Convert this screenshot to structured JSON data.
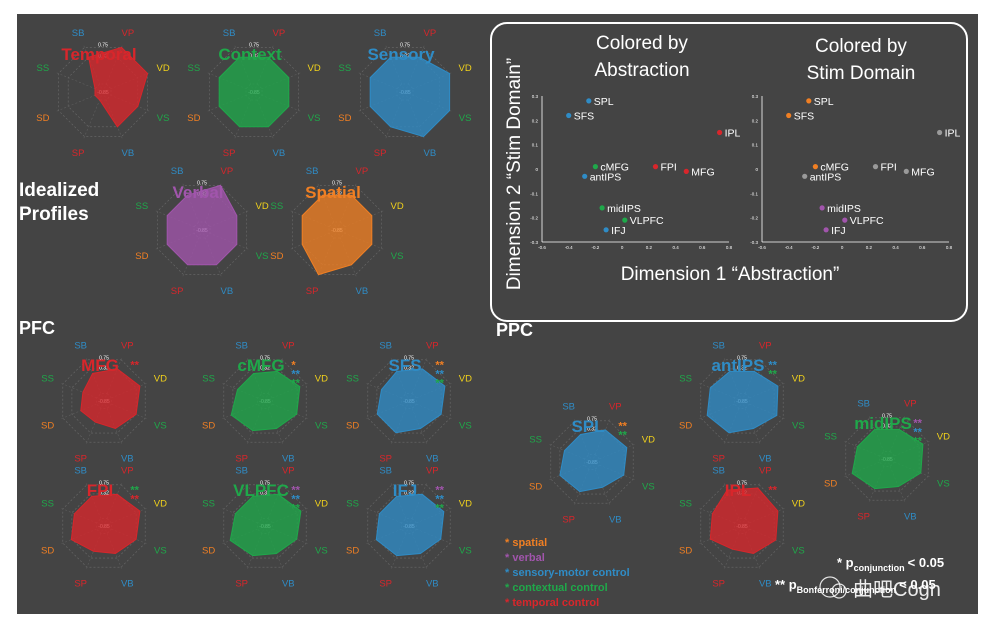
{
  "axis_labels": {
    "VP": "VP",
    "VD": "VD",
    "VS": "VS",
    "VB": "VB",
    "SP": "SP",
    "SD": "SD",
    "SS": "SS",
    "SB": "SB"
  },
  "tick_labels": {
    "outer": "0.75",
    "mid": "0.32",
    "inner": "-0.85"
  },
  "colors": {
    "spatial": "#f07f23",
    "verbal": "#a155ac",
    "sensory": "#2f8cc6",
    "contextual": "#1fa84a",
    "temporal": "#d8262b",
    "gray": "#9a9a9a"
  },
  "idealized": {
    "title_line1": "Idealized",
    "title_line2": "Profiles",
    "profiles": [
      {
        "name": "Temporal",
        "color": "temporal",
        "values": [
          0.75,
          0.75,
          0.32,
          0.32,
          -0.85,
          -0.85,
          -0.85,
          0.32
        ]
      },
      {
        "name": "Context",
        "color": "contextual",
        "values": [
          0.32,
          0.32,
          0.32,
          0.32,
          0.32,
          0.32,
          0.32,
          0.32
        ]
      },
      {
        "name": "Sensory",
        "color": "sensory",
        "values": [
          0.32,
          0.75,
          0.75,
          0.75,
          0.32,
          0.32,
          0.32,
          0.32
        ]
      },
      {
        "name": "Verbal",
        "color": "verbal",
        "values": [
          0.75,
          0.32,
          0.32,
          0.32,
          0.32,
          0.32,
          0.32,
          0.32
        ]
      },
      {
        "name": "Spatial",
        "color": "spatial",
        "values": [
          0.32,
          0.32,
          0.32,
          0.32,
          0.75,
          0.32,
          0.32,
          0.32
        ]
      }
    ]
  },
  "pfc": {
    "title": "PFC",
    "regions": [
      {
        "name": "MFG",
        "color": "temporal",
        "stars": [
          {
            "text": "**",
            "color": "temporal"
          }
        ],
        "values": [
          0.32,
          0.5,
          0.32,
          0.1,
          -0.2,
          -0.1,
          -0.2,
          0.1
        ]
      },
      {
        "name": "cMFG",
        "color": "contextual",
        "stars": [
          {
            "text": "*",
            "color": "spatial"
          },
          {
            "text": "**",
            "color": "sensory"
          },
          {
            "text": "**",
            "color": "contextual"
          }
        ],
        "values": [
          0.2,
          0.45,
          0.3,
          0.1,
          0.2,
          0.4,
          0.1,
          0.1
        ]
      },
      {
        "name": "SFS",
        "color": "sensory",
        "stars": [
          {
            "text": "**",
            "color": "spatial"
          },
          {
            "text": "**",
            "color": "sensory"
          },
          {
            "text": "**",
            "color": "contextual"
          }
        ],
        "values": [
          0.32,
          0.5,
          0.32,
          0.1,
          0.3,
          0.3,
          0.1,
          0.2
        ]
      },
      {
        "name": "FPI",
        "color": "temporal",
        "stars": [
          {
            "text": "**",
            "color": "contextual"
          },
          {
            "text": "**",
            "color": "temporal"
          }
        ],
        "values": [
          0.3,
          0.5,
          0.32,
          0.1,
          0.0,
          0.35,
          0.2,
          0.2
        ]
      },
      {
        "name": "VLPFC",
        "color": "contextual",
        "stars": [
          {
            "text": "**",
            "color": "verbal"
          },
          {
            "text": "**",
            "color": "sensory"
          },
          {
            "text": "**",
            "color": "contextual"
          }
        ],
        "values": [
          0.3,
          0.5,
          0.3,
          0.1,
          0.2,
          0.45,
          0.2,
          0.2
        ]
      },
      {
        "name": "IFJ",
        "color": "sensory",
        "stars": [
          {
            "text": "**",
            "color": "verbal"
          },
          {
            "text": "**",
            "color": "sensory"
          },
          {
            "text": "**",
            "color": "contextual"
          }
        ],
        "values": [
          0.3,
          0.45,
          0.3,
          0.1,
          0.2,
          0.35,
          0.2,
          0.2
        ]
      }
    ]
  },
  "ppc": {
    "title": "PPC",
    "regions": [
      {
        "name": "SPL",
        "color": "sensory",
        "stars": [
          {
            "text": "**",
            "color": "spatial"
          },
          {
            "text": "**",
            "color": "contextual"
          }
        ],
        "values": [
          0.32,
          0.45,
          0.3,
          0.0,
          0.2,
          0.32,
          0.1,
          0.1
        ]
      },
      {
        "name": "antIPS",
        "color": "sensory",
        "stars": [
          {
            "text": "**",
            "color": "sensory"
          },
          {
            "text": "**",
            "color": "contextual"
          }
        ],
        "values": [
          0.2,
          0.5,
          0.45,
          0.1,
          0.3,
          0.45,
          0.3,
          0.2
        ]
      },
      {
        "name": "midIPS",
        "color": "contextual",
        "stars": [
          {
            "text": "**",
            "color": "verbal"
          },
          {
            "text": "**",
            "color": "sensory"
          },
          {
            "text": "**",
            "color": "contextual"
          }
        ],
        "values": [
          0.2,
          0.5,
          0.4,
          0.1,
          0.2,
          0.45,
          0.2,
          0.2
        ]
      },
      {
        "name": "IPL",
        "color": "temporal",
        "stars": [
          {
            "text": "**",
            "color": "temporal"
          }
        ],
        "values": [
          0.6,
          0.5,
          0.4,
          0.1,
          -0.1,
          0.3,
          0.2,
          0.5
        ]
      }
    ]
  },
  "legend": {
    "items": [
      {
        "text": "* spatial",
        "color": "spatial"
      },
      {
        "text": "* verbal",
        "color": "verbal"
      },
      {
        "text": "* sensory-motor control",
        "color": "sensory"
      },
      {
        "text": "* contextual control",
        "color": "contextual"
      },
      {
        "text": "* temporal control",
        "color": "temporal"
      }
    ],
    "sig1_prefix": "* p",
    "sig1_sub": "conjunction",
    "sig1_suffix": "< 0.05",
    "sig2_prefix": "** p",
    "sig2_sub": "Bonferroni/conjunction",
    "sig2_suffix": "< 0.05",
    "watermark": "曲吧Cogn"
  },
  "chart_data": [
    {
      "type": "scatter",
      "title_line1": "Colored by",
      "title_line2": "Abstraction",
      "xlabel": "Dimension 1 “Abstraction”",
      "ylabel": "Dimension 2 “Stim Domain”",
      "xlim": [
        -0.6,
        0.8
      ],
      "ylim": [
        -0.3,
        0.3
      ],
      "xticks": [
        "-0.6",
        "-0.4",
        "-0.2",
        "0",
        "0.2",
        "0.4",
        "0.6",
        "0.8"
      ],
      "yticks": [
        "0.3",
        "0.2",
        "0.1",
        "0",
        "-0.1",
        "-0.2",
        "-0.3"
      ],
      "points": [
        {
          "label": "SPL",
          "x": -0.25,
          "y": 0.28,
          "color": "sensory"
        },
        {
          "label": "SFS",
          "x": -0.4,
          "y": 0.22,
          "color": "sensory"
        },
        {
          "label": "IPL",
          "x": 0.73,
          "y": 0.15,
          "color": "temporal"
        },
        {
          "label": "cMFG",
          "x": -0.2,
          "y": 0.01,
          "color": "contextual"
        },
        {
          "label": "FPI",
          "x": 0.25,
          "y": 0.01,
          "color": "temporal"
        },
        {
          "label": "MFG",
          "x": 0.48,
          "y": -0.01,
          "color": "temporal"
        },
        {
          "label": "antIPS",
          "x": -0.28,
          "y": -0.03,
          "color": "sensory"
        },
        {
          "label": "midIPS",
          "x": -0.15,
          "y": -0.16,
          "color": "contextual"
        },
        {
          "label": "VLPFC",
          "x": 0.02,
          "y": -0.21,
          "color": "contextual"
        },
        {
          "label": "IFJ",
          "x": -0.12,
          "y": -0.25,
          "color": "sensory"
        }
      ]
    },
    {
      "type": "scatter",
      "title_line1": "Colored by",
      "title_line2": "Stim Domain",
      "xlim": [
        -0.6,
        0.8
      ],
      "ylim": [
        -0.3,
        0.3
      ],
      "xticks": [
        "-0.6",
        "-0.4",
        "-0.2",
        "0",
        "0.2",
        "0.4",
        "0.6",
        "0.8"
      ],
      "yticks": [
        "0.3",
        "0.2",
        "0.1",
        "0",
        "-0.1",
        "-0.2",
        "-0.3"
      ],
      "points": [
        {
          "label": "SPL",
          "x": -0.25,
          "y": 0.28,
          "color": "spatial"
        },
        {
          "label": "SFS",
          "x": -0.4,
          "y": 0.22,
          "color": "spatial"
        },
        {
          "label": "IPL",
          "x": 0.73,
          "y": 0.15,
          "color": "gray"
        },
        {
          "label": "cMFG",
          "x": -0.2,
          "y": 0.01,
          "color": "spatial"
        },
        {
          "label": "FPI",
          "x": 0.25,
          "y": 0.01,
          "color": "gray"
        },
        {
          "label": "MFG",
          "x": 0.48,
          "y": -0.01,
          "color": "gray"
        },
        {
          "label": "antIPS",
          "x": -0.28,
          "y": -0.03,
          "color": "gray"
        },
        {
          "label": "midIPS",
          "x": -0.15,
          "y": -0.16,
          "color": "verbal"
        },
        {
          "label": "VLPFC",
          "x": 0.02,
          "y": -0.21,
          "color": "verbal"
        },
        {
          "label": "IFJ",
          "x": -0.12,
          "y": -0.25,
          "color": "verbal"
        }
      ]
    }
  ]
}
